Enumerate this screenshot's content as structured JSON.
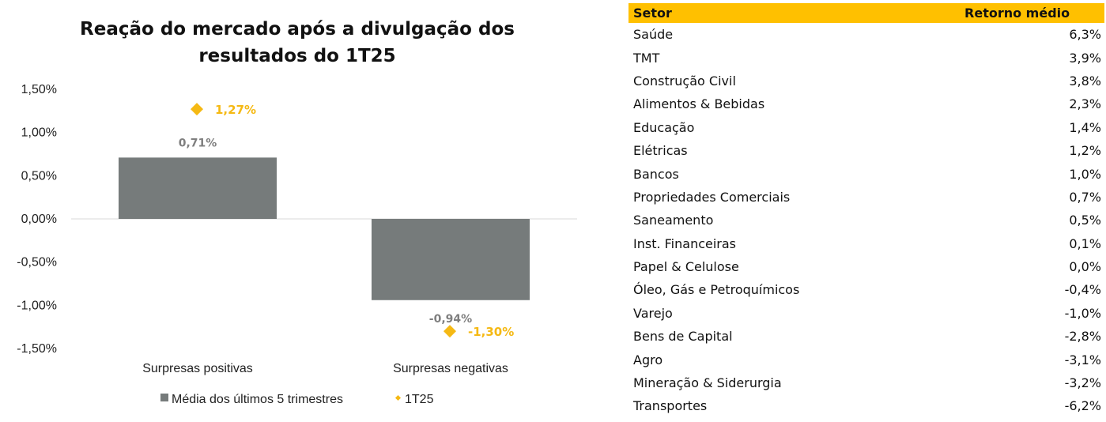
{
  "chart_data": {
    "type": "bar",
    "title_lines": [
      "Reação do mercado após a divulgação dos",
      "resultados do 1T25"
    ],
    "categories": [
      "Surpresas positivas",
      "Surpresas negativas"
    ],
    "series": [
      {
        "name": "Média dos últimos 5 trimestres",
        "kind": "bar",
        "values": [
          0.71,
          -0.94
        ],
        "labels": [
          "0,71%",
          "-0,94%"
        ]
      },
      {
        "name": "1T25",
        "kind": "marker",
        "values": [
          1.27,
          -1.3
        ],
        "labels": [
          "1,27%",
          "-1,30%"
        ]
      }
    ],
    "ylim": [
      -1.5,
      1.5
    ],
    "yticks": [
      "1,50%",
      "1,00%",
      "0,50%",
      "0,00%",
      "-0,50%",
      "-1,00%",
      "-1,50%"
    ],
    "ytick_values": [
      1.5,
      1.0,
      0.5,
      0.0,
      -0.5,
      -1.0,
      -1.5
    ],
    "legend_position": "bottom",
    "colors": {
      "bar": "#767b7b",
      "marker": "#f5b914",
      "bar_label": "#7f7f7f"
    }
  },
  "table": {
    "header": {
      "setor": "Setor",
      "retorno": "Retorno médio"
    },
    "header_color": "#ffc000",
    "rows": [
      {
        "setor": "Saúde",
        "retorno": "6,3%"
      },
      {
        "setor": "TMT",
        "retorno": "3,9%"
      },
      {
        "setor": "Construção Civil",
        "retorno": "3,8%"
      },
      {
        "setor": "Alimentos & Bebidas",
        "retorno": "2,3%"
      },
      {
        "setor": "Educação",
        "retorno": "1,4%"
      },
      {
        "setor": "Elétricas",
        "retorno": "1,2%"
      },
      {
        "setor": "Bancos",
        "retorno": "1,0%"
      },
      {
        "setor": "Propriedades Comerciais",
        "retorno": "0,7%"
      },
      {
        "setor": "Saneamento",
        "retorno": "0,5%"
      },
      {
        "setor": "Inst. Financeiras",
        "retorno": "0,1%"
      },
      {
        "setor": "Papel & Celulose",
        "retorno": "0,0%"
      },
      {
        "setor": "Óleo, Gás e Petroquímicos",
        "retorno": "-0,4%"
      },
      {
        "setor": "Varejo",
        "retorno": "-1,0%"
      },
      {
        "setor": "Bens de Capital",
        "retorno": "-2,8%"
      },
      {
        "setor": "Agro",
        "retorno": "-3,1%"
      },
      {
        "setor": "Mineração & Siderurgia",
        "retorno": "-3,2%"
      },
      {
        "setor": "Transportes",
        "retorno": "-6,2%"
      }
    ]
  }
}
